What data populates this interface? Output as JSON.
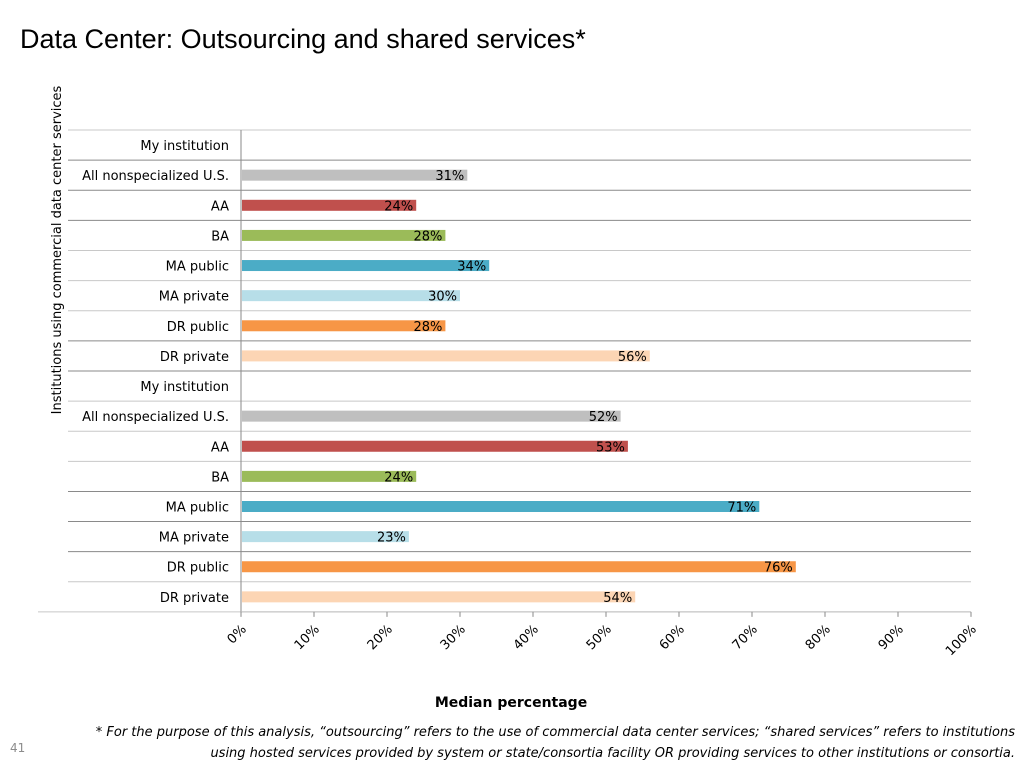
{
  "slide": {
    "title": "Data Center: Outsourcing and shared services*",
    "footnote": "* For the purpose of this analysis, “outsourcing” refers to the use of commercial data center services; “shared services” refers to institutions using hosted services provided by system or state/consortia facility OR providing services to other institutions or consortia.",
    "slide_number": "41"
  },
  "chart_data": {
    "type": "bar",
    "orientation": "horizontal",
    "title": "",
    "xlabel": "Median percentage",
    "ylabel": "Institutions using commercial data center services",
    "xlim": [
      0,
      100
    ],
    "x_ticks": [
      "0%",
      "10%",
      "20%",
      "30%",
      "40%",
      "50%",
      "60%",
      "70%",
      "80%",
      "90%",
      "100%"
    ],
    "grid": "horizontal row separators",
    "legend": "none",
    "categories": [
      "My institution",
      "All nonspecialized U.S.",
      "AA",
      "BA",
      "MA public",
      "MA private",
      "DR public",
      "DR private",
      "My institution",
      "All nonspecialized U.S.",
      "AA",
      "BA",
      "MA public",
      "MA private",
      "DR public",
      "DR private"
    ],
    "values": [
      null,
      31,
      24,
      28,
      34,
      30,
      28,
      56,
      null,
      52,
      53,
      24,
      71,
      23,
      76,
      54
    ],
    "data_labels": [
      "",
      "31%",
      "24%",
      "28%",
      "34%",
      "30%",
      "28%",
      "56%",
      "",
      "52%",
      "53%",
      "24%",
      "71%",
      "23%",
      "76%",
      "54%"
    ],
    "colors": [
      "#ffffff",
      "#bfbfbf",
      "#c0504d",
      "#9bbb59",
      "#4bacc6",
      "#b7dee8",
      "#f79646",
      "#fcd5b4",
      "#ffffff",
      "#bfbfbf",
      "#c0504d",
      "#9bbb59",
      "#4bacc6",
      "#b7dee8",
      "#f79646",
      "#fcd5b4"
    ]
  }
}
